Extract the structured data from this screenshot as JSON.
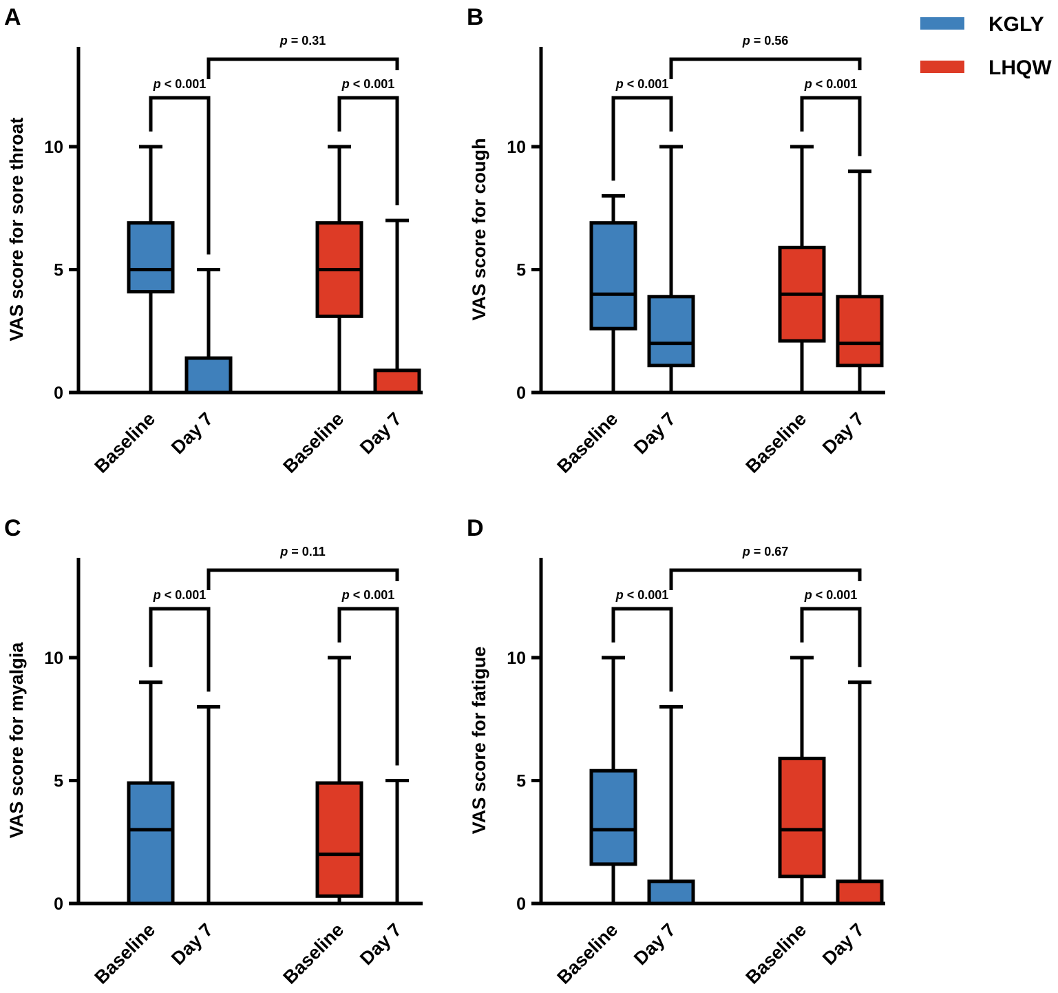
{
  "legend": [
    {
      "label": "KGLY",
      "color": "#3f80bb"
    },
    {
      "label": "LHQW",
      "color": "#dd3b26"
    }
  ],
  "chart_data": [
    {
      "panel": "A",
      "type": "box",
      "ylabel": "VAS score for sore throat",
      "ylim": [
        0,
        14
      ],
      "yticks": [
        "0",
        "5",
        "10"
      ],
      "categories": [
        "Baseline",
        "Day 7",
        "Baseline",
        "Day 7"
      ],
      "boxes": [
        {
          "group": "KGLY",
          "category": "Baseline",
          "min": 0,
          "q1": 4.1,
          "median": 5,
          "q3": 6.9,
          "max": 10
        },
        {
          "group": "KGLY",
          "category": "Day 7",
          "min": 0,
          "q1": 0,
          "median": 0,
          "q3": 1.4,
          "max": 5
        },
        {
          "group": "LHQW",
          "category": "Baseline",
          "min": 0,
          "q1": 3.1,
          "median": 5,
          "q3": 6.9,
          "max": 10
        },
        {
          "group": "LHQW",
          "category": "Day 7",
          "min": 0,
          "q1": 0,
          "median": 0,
          "q3": 0.9,
          "max": 7
        }
      ],
      "comparisons": [
        {
          "label": "p < 0.001",
          "from": 0,
          "to": 1
        },
        {
          "label": "p < 0.001",
          "from": 2,
          "to": 3
        },
        {
          "label": "p = 0.31",
          "from": 1,
          "to": 3
        }
      ]
    },
    {
      "panel": "B",
      "type": "box",
      "ylabel": "VAS score for cough",
      "ylim": [
        0,
        14
      ],
      "yticks": [
        "0",
        "5",
        "10"
      ],
      "categories": [
        "Baseline",
        "Day 7",
        "Baseline",
        "Day 7"
      ],
      "boxes": [
        {
          "group": "KGLY",
          "category": "Baseline",
          "min": 0,
          "q1": 2.6,
          "median": 4,
          "q3": 6.9,
          "max": 8
        },
        {
          "group": "KGLY",
          "category": "Day 7",
          "min": 0,
          "q1": 1.1,
          "median": 2,
          "q3": 3.9,
          "max": 10
        },
        {
          "group": "LHQW",
          "category": "Baseline",
          "min": 0,
          "q1": 2.1,
          "median": 4,
          "q3": 5.9,
          "max": 10
        },
        {
          "group": "LHQW",
          "category": "Day 7",
          "min": 0,
          "q1": 1.1,
          "median": 2,
          "q3": 3.9,
          "max": 9
        }
      ],
      "comparisons": [
        {
          "label": "p < 0.001",
          "from": 0,
          "to": 1
        },
        {
          "label": "p < 0.001",
          "from": 2,
          "to": 3
        },
        {
          "label": "p = 0.56",
          "from": 1,
          "to": 3
        }
      ]
    },
    {
      "panel": "C",
      "type": "box",
      "ylabel": "VAS score for myalgia",
      "ylim": [
        0,
        14
      ],
      "yticks": [
        "0",
        "5",
        "10"
      ],
      "categories": [
        "Baseline",
        "Day 7",
        "Baseline",
        "Day 7"
      ],
      "boxes": [
        {
          "group": "KGLY",
          "category": "Baseline",
          "min": 0,
          "q1": 0,
          "median": 3,
          "q3": 4.9,
          "max": 9
        },
        {
          "group": "KGLY",
          "category": "Day 7",
          "min": 0,
          "q1": 0,
          "median": 0,
          "q3": 0,
          "max": 8
        },
        {
          "group": "LHQW",
          "category": "Baseline",
          "min": 0,
          "q1": 0.3,
          "median": 2,
          "q3": 4.9,
          "max": 10
        },
        {
          "group": "LHQW",
          "category": "Day 7",
          "min": 0,
          "q1": 0,
          "median": 0,
          "q3": 0,
          "max": 5
        }
      ],
      "comparisons": [
        {
          "label": "p < 0.001",
          "from": 0,
          "to": 1
        },
        {
          "label": "p < 0.001",
          "from": 2,
          "to": 3
        },
        {
          "label": "p = 0.11",
          "from": 1,
          "to": 3
        }
      ]
    },
    {
      "panel": "D",
      "type": "box",
      "ylabel": "VAS score for fatigue",
      "ylim": [
        0,
        14
      ],
      "yticks": [
        "0",
        "5",
        "10"
      ],
      "categories": [
        "Baseline",
        "Day 7",
        "Baseline",
        "Day 7"
      ],
      "boxes": [
        {
          "group": "KGLY",
          "category": "Baseline",
          "min": 0,
          "q1": 1.6,
          "median": 3,
          "q3": 5.4,
          "max": 10
        },
        {
          "group": "KGLY",
          "category": "Day 7",
          "min": 0,
          "q1": 0,
          "median": 0,
          "q3": 0.9,
          "max": 8
        },
        {
          "group": "LHQW",
          "category": "Baseline",
          "min": 0,
          "q1": 1.1,
          "median": 3,
          "q3": 5.9,
          "max": 10
        },
        {
          "group": "LHQW",
          "category": "Day 7",
          "min": 0,
          "q1": 0,
          "median": 0,
          "q3": 0.9,
          "max": 9
        }
      ],
      "comparisons": [
        {
          "label": "p < 0.001",
          "from": 0,
          "to": 1
        },
        {
          "label": "p < 0.001",
          "from": 2,
          "to": 3
        },
        {
          "label": "p = 0.67",
          "from": 1,
          "to": 3
        }
      ]
    }
  ]
}
